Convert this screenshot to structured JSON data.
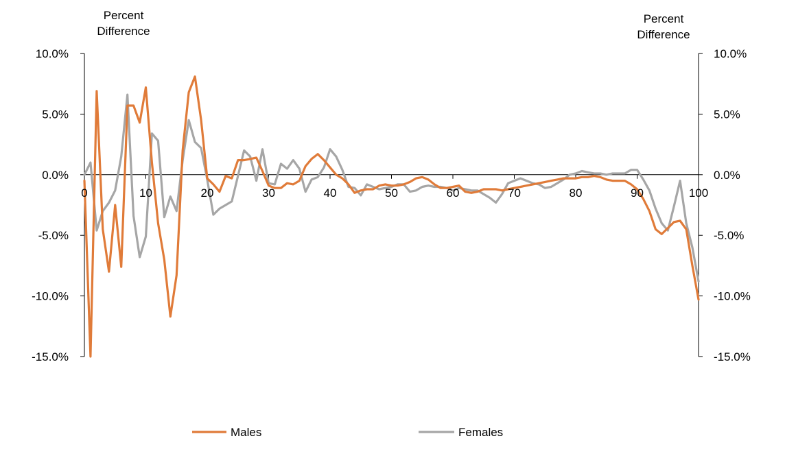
{
  "chart_data": {
    "type": "line",
    "y_axis_title_left": [
      "Percent",
      "Difference"
    ],
    "y_axis_title_right": [
      "Percent",
      "Difference"
    ],
    "ylim": [
      -0.15,
      0.1
    ],
    "yticks": [
      0.1,
      0.05,
      0.0,
      -0.05,
      -0.1,
      -0.15
    ],
    "ytick_labels": [
      "10.0%",
      "5.0%",
      "0.0%",
      "-5.0%",
      "-10.0%",
      "-15.0%"
    ],
    "xlim": [
      0,
      100
    ],
    "xticks": [
      0,
      10,
      20,
      30,
      40,
      50,
      60,
      70,
      80,
      90,
      100
    ],
    "xtick_labels": [
      "0",
      "10",
      "20",
      "30",
      "40",
      "50",
      "60",
      "70",
      "80",
      "90",
      "100"
    ],
    "grid": false,
    "legend_position": "bottom",
    "series": [
      {
        "name": "Males",
        "color": "#E07B39",
        "x": [
          0,
          1,
          2,
          3,
          4,
          5,
          6,
          7,
          8,
          9,
          10,
          11,
          12,
          13,
          14,
          15,
          16,
          17,
          18,
          19,
          20,
          21,
          22,
          23,
          24,
          25,
          26,
          27,
          28,
          29,
          30,
          31,
          32,
          33,
          34,
          35,
          36,
          37,
          38,
          39,
          40,
          41,
          42,
          43,
          44,
          45,
          46,
          47,
          48,
          49,
          50,
          51,
          52,
          53,
          54,
          55,
          56,
          57,
          58,
          59,
          60,
          61,
          62,
          63,
          64,
          65,
          66,
          67,
          68,
          69,
          70,
          71,
          72,
          73,
          74,
          75,
          76,
          77,
          78,
          79,
          80,
          81,
          82,
          83,
          84,
          85,
          86,
          87,
          88,
          89,
          90,
          91,
          92,
          93,
          94,
          95,
          96,
          97,
          98,
          99,
          100
        ],
        "y": [
          -0.005,
          -0.15,
          0.069,
          -0.045,
          -0.08,
          -0.025,
          -0.076,
          0.057,
          0.057,
          0.043,
          0.072,
          0.01,
          -0.04,
          -0.07,
          -0.117,
          -0.083,
          0.02,
          0.068,
          0.081,
          0.045,
          -0.003,
          -0.008,
          -0.014,
          -0.001,
          -0.003,
          0.012,
          0.012,
          0.013,
          0.014,
          0.003,
          -0.009,
          -0.011,
          -0.011,
          -0.007,
          -0.008,
          -0.005,
          0.007,
          0.013,
          0.017,
          0.012,
          0.006,
          0.0,
          -0.003,
          -0.008,
          -0.015,
          -0.013,
          -0.012,
          -0.012,
          -0.009,
          -0.008,
          -0.009,
          -0.009,
          -0.008,
          -0.006,
          -0.003,
          -0.002,
          -0.004,
          -0.008,
          -0.011,
          -0.011,
          -0.01,
          -0.009,
          -0.014,
          -0.015,
          -0.014,
          -0.012,
          -0.012,
          -0.012,
          -0.013,
          -0.012,
          -0.011,
          -0.01,
          -0.009,
          -0.008,
          -0.007,
          -0.006,
          -0.005,
          -0.004,
          -0.003,
          -0.003,
          -0.003,
          -0.002,
          -0.002,
          -0.001,
          -0.002,
          -0.004,
          -0.005,
          -0.005,
          -0.005,
          -0.008,
          -0.012,
          -0.02,
          -0.03,
          -0.045,
          -0.049,
          -0.044,
          -0.039,
          -0.038,
          -0.045,
          -0.075,
          -0.103
        ]
      },
      {
        "name": "Females",
        "color": "#A6A6A6",
        "x": [
          0,
          1,
          2,
          3,
          4,
          5,
          6,
          7,
          8,
          9,
          10,
          11,
          12,
          13,
          14,
          15,
          16,
          17,
          18,
          19,
          20,
          21,
          22,
          23,
          24,
          25,
          26,
          27,
          28,
          29,
          30,
          31,
          32,
          33,
          34,
          35,
          36,
          37,
          38,
          39,
          40,
          41,
          42,
          43,
          44,
          45,
          46,
          47,
          48,
          49,
          50,
          51,
          52,
          53,
          54,
          55,
          56,
          57,
          58,
          59,
          60,
          61,
          62,
          63,
          64,
          65,
          66,
          67,
          68,
          69,
          70,
          71,
          72,
          73,
          74,
          75,
          76,
          77,
          78,
          79,
          80,
          81,
          82,
          83,
          84,
          85,
          86,
          87,
          88,
          89,
          90,
          91,
          92,
          93,
          94,
          95,
          96,
          97,
          98,
          99,
          100
        ],
        "y": [
          0.0,
          0.01,
          -0.046,
          -0.03,
          -0.023,
          -0.013,
          0.015,
          0.066,
          -0.034,
          -0.068,
          -0.051,
          0.034,
          0.028,
          -0.035,
          -0.018,
          -0.03,
          0.012,
          0.045,
          0.027,
          0.022,
          -0.004,
          -0.033,
          -0.028,
          -0.025,
          -0.022,
          -0.001,
          0.02,
          0.015,
          -0.005,
          0.021,
          -0.007,
          -0.008,
          0.009,
          0.005,
          0.012,
          0.005,
          -0.014,
          -0.004,
          -0.002,
          0.006,
          0.021,
          0.015,
          0.004,
          -0.01,
          -0.011,
          -0.017,
          -0.008,
          -0.01,
          -0.012,
          -0.011,
          -0.01,
          -0.008,
          -0.008,
          -0.014,
          -0.013,
          -0.01,
          -0.009,
          -0.01,
          -0.01,
          -0.011,
          -0.013,
          -0.011,
          -0.012,
          -0.013,
          -0.013,
          -0.016,
          -0.019,
          -0.023,
          -0.016,
          -0.007,
          -0.005,
          -0.003,
          -0.005,
          -0.007,
          -0.008,
          -0.011,
          -0.01,
          -0.007,
          -0.004,
          0.0,
          0.001,
          0.003,
          0.002,
          0.001,
          0.001,
          0.0,
          0.001,
          0.001,
          0.001,
          0.004,
          0.004,
          -0.004,
          -0.013,
          -0.028,
          -0.04,
          -0.046,
          -0.026,
          -0.005,
          -0.04,
          -0.06,
          -0.088
        ]
      }
    ]
  }
}
